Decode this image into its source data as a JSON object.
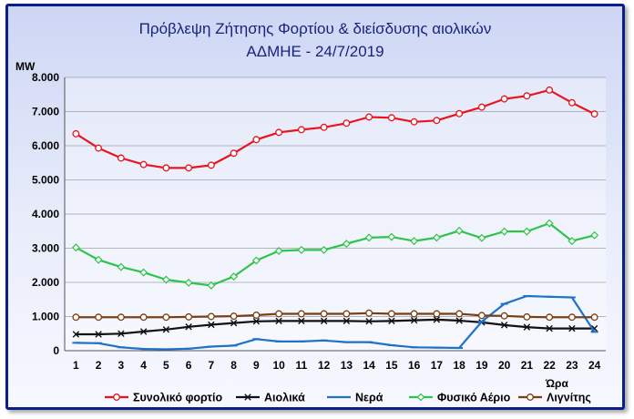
{
  "chart_data": {
    "type": "line",
    "title_line1": "Πρόβλεψη Ζήτησης Φορτίου & διείσδυσης αιολικών",
    "title_line2": "ΑΔΜΗΕ - 24/7/2019",
    "ylabel": "MW",
    "xlabel": "Ώρα",
    "ylim": [
      0,
      8000
    ],
    "yticks": [
      {
        "value": 0,
        "label": "0"
      },
      {
        "value": 1000,
        "label": "1.000"
      },
      {
        "value": 2000,
        "label": "2.000"
      },
      {
        "value": 3000,
        "label": "3.000"
      },
      {
        "value": 4000,
        "label": "4.000"
      },
      {
        "value": 5000,
        "label": "5.000"
      },
      {
        "value": 6000,
        "label": "6.000"
      },
      {
        "value": 7000,
        "label": "7.000"
      },
      {
        "value": 8000,
        "label": "8.000"
      }
    ],
    "x": [
      "1",
      "2",
      "3",
      "4",
      "5",
      "6",
      "7",
      "8",
      "9",
      "10",
      "11",
      "12",
      "13",
      "14",
      "15",
      "16",
      "17",
      "18",
      "19",
      "20",
      "21",
      "22",
      "23",
      "24"
    ],
    "grid": "horizontal",
    "legend_position": "bottom",
    "series": [
      {
        "name": "Συνολικό φορτίο",
        "color": "#e8141e",
        "marker": "circle",
        "values": [
          6350,
          5930,
          5640,
          5450,
          5350,
          5350,
          5430,
          5780,
          6180,
          6390,
          6470,
          6540,
          6660,
          6840,
          6820,
          6700,
          6740,
          6940,
          7130,
          7370,
          7460,
          7630,
          7260,
          6930
        ]
      },
      {
        "name": "Αιολικά",
        "color": "#111111",
        "marker": "x",
        "values": [
          480,
          480,
          500,
          560,
          620,
          700,
          760,
          810,
          860,
          870,
          870,
          870,
          870,
          860,
          870,
          890,
          910,
          880,
          830,
          750,
          690,
          650,
          650,
          650
        ]
      },
      {
        "name": "Νερά",
        "color": "#1e72c8",
        "marker": "dash",
        "values": [
          230,
          220,
          100,
          50,
          40,
          60,
          120,
          150,
          340,
          270,
          270,
          300,
          250,
          250,
          160,
          100,
          90,
          80,
          850,
          1370,
          1600,
          1580,
          1560,
          550
        ]
      },
      {
        "name": "Φυσικό Αέριο",
        "color": "#2ec44a",
        "marker": "diamond",
        "values": [
          3020,
          2660,
          2450,
          2290,
          2080,
          1990,
          1910,
          2170,
          2640,
          2920,
          2950,
          2950,
          3130,
          3310,
          3330,
          3210,
          3310,
          3510,
          3300,
          3490,
          3490,
          3730,
          3210,
          3380
        ]
      },
      {
        "name": "Λιγνίτης",
        "color": "#7a3e10",
        "marker": "circle",
        "values": [
          980,
          980,
          980,
          980,
          980,
          990,
          1000,
          1010,
          1040,
          1080,
          1080,
          1080,
          1080,
          1100,
          1080,
          1080,
          1080,
          1080,
          1030,
          1020,
          990,
          980,
          980,
          980
        ]
      }
    ]
  }
}
